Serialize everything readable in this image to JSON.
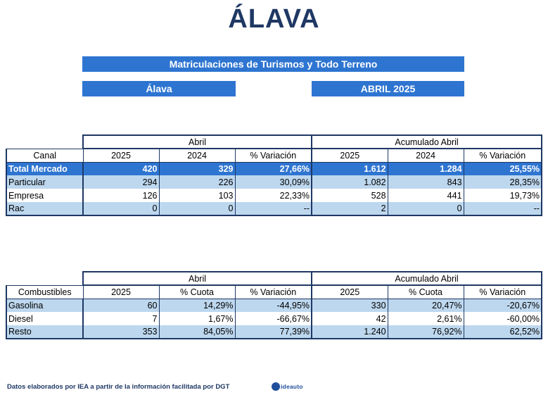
{
  "title": "ÁLAVA",
  "header": {
    "main": "Matriculaciones de Turismos y Todo Terreno",
    "region": "Álava",
    "period": "ABRIL 2025"
  },
  "table1": {
    "group_month": "Abril",
    "group_cumulative": "Acumulado Abril",
    "columns": [
      "Canal",
      "2025",
      "2024",
      "% Variación",
      "2025",
      "2024",
      "% Variación"
    ],
    "rows": [
      [
        "Total Mercado",
        "420",
        "329",
        "27,66%",
        "1.612",
        "1.284",
        "25,55%"
      ],
      [
        "Particular",
        "294",
        "226",
        "30,09%",
        "1.082",
        "843",
        "28,35%"
      ],
      [
        "Empresa",
        "126",
        "103",
        "22,33%",
        "528",
        "441",
        "19,73%"
      ],
      [
        "Rac",
        "0",
        "0",
        "--",
        "2",
        "0",
        "--"
      ]
    ]
  },
  "table2": {
    "group_month": "Abril",
    "group_cumulative": "Acumulado Abril",
    "columns": [
      "Combustibles",
      "2025",
      "% Cuota",
      "% Variación",
      "2025",
      "% Cuota",
      "% Variación"
    ],
    "rows": [
      [
        "Gasolina",
        "60",
        "14,29%",
        "-44,95%",
        "330",
        "20,47%",
        "-20,67%"
      ],
      [
        "Diesel",
        "7",
        "1,67%",
        "-66,67%",
        "42",
        "2,61%",
        "-60,00%"
      ],
      [
        "Resto",
        "353",
        "84,05%",
        "77,39%",
        "1.240",
        "76,92%",
        "62,52%"
      ]
    ]
  },
  "footer": {
    "source": "Datos elaborados por IEA a partir de la información facilitada por DGT",
    "logo_text": "ideauto"
  }
}
